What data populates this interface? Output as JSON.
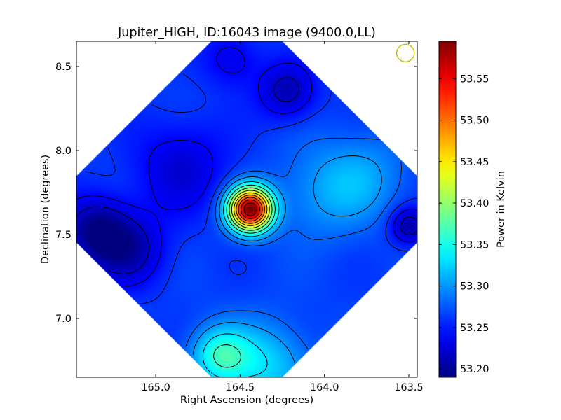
{
  "chart_data": {
    "type": "heatmap",
    "title": "Jupiter_HIGH, ID:16043 image (9400.0,LL)",
    "xlabel": "Right Ascension (degrees)",
    "ylabel": "Declination (degrees)",
    "colorbar_label": "Power in Kelvin",
    "xlim": [
      165.47,
      163.45
    ],
    "ylim": [
      6.65,
      8.65
    ],
    "x_reversed": true,
    "x_ticks": [
      165.0,
      164.5,
      164.0,
      163.5
    ],
    "x_tick_labels": [
      "165.0",
      "164.5",
      "164.0",
      "163.5"
    ],
    "y_ticks": [
      7.0,
      7.5,
      8.0,
      8.5
    ],
    "y_tick_labels": [
      "7.0",
      "7.5",
      "8.0",
      "8.5"
    ],
    "color_range": [
      53.19,
      53.595
    ],
    "colorbar_ticks": [
      53.2,
      53.25,
      53.3,
      53.35,
      53.4,
      53.45,
      53.5,
      53.55
    ],
    "colorbar_tick_labels": [
      "53.20",
      "53.25",
      "53.30",
      "53.35",
      "53.40",
      "53.45",
      "53.50",
      "53.55"
    ],
    "colormap": "jet",
    "coverage": "diamond",
    "coverage_center": [
      164.46,
      7.65
    ],
    "coverage_half_width_deg": 1.21,
    "background_level": 53.265,
    "features": [
      {
        "kind": "peak",
        "ra": 164.44,
        "dec": 7.65,
        "amplitude": 0.33,
        "sigma": 0.09
      },
      {
        "kind": "enhancement",
        "ra": 164.62,
        "dec": 6.78,
        "amplitude": 0.085,
        "sigma": 0.12
      },
      {
        "kind": "enhancement",
        "ra": 164.35,
        "dec": 6.72,
        "amplitude": 0.06,
        "sigma": 0.18
      },
      {
        "kind": "enhancement",
        "ra": 164.0,
        "dec": 7.75,
        "amplitude": 0.035,
        "sigma": 0.2
      },
      {
        "kind": "enhancement",
        "ra": 163.75,
        "dec": 7.85,
        "amplitude": 0.03,
        "sigma": 0.18
      },
      {
        "kind": "depression",
        "ra": 165.35,
        "dec": 7.52,
        "amplitude": -0.07,
        "sigma": 0.14
      },
      {
        "kind": "depression",
        "ra": 165.15,
        "dec": 7.4,
        "amplitude": -0.05,
        "sigma": 0.15
      },
      {
        "kind": "depression",
        "ra": 164.22,
        "dec": 8.35,
        "amplitude": -0.055,
        "sigma": 0.12
      },
      {
        "kind": "depression",
        "ra": 164.85,
        "dec": 7.9,
        "amplitude": -0.04,
        "sigma": 0.2
      },
      {
        "kind": "depression",
        "ra": 163.5,
        "dec": 7.55,
        "amplitude": -0.06,
        "sigma": 0.08
      },
      {
        "kind": "depression",
        "ra": 164.55,
        "dec": 8.55,
        "amplitude": -0.035,
        "sigma": 0.12
      }
    ],
    "contour_levels": [
      53.22,
      53.24,
      53.26,
      53.28,
      53.3,
      53.33,
      53.36,
      53.39,
      53.42,
      53.45,
      53.48,
      53.51,
      53.54,
      53.57
    ],
    "beam_marker": {
      "ra": 163.52,
      "dec": 8.58,
      "color": "#bfbf00"
    }
  }
}
